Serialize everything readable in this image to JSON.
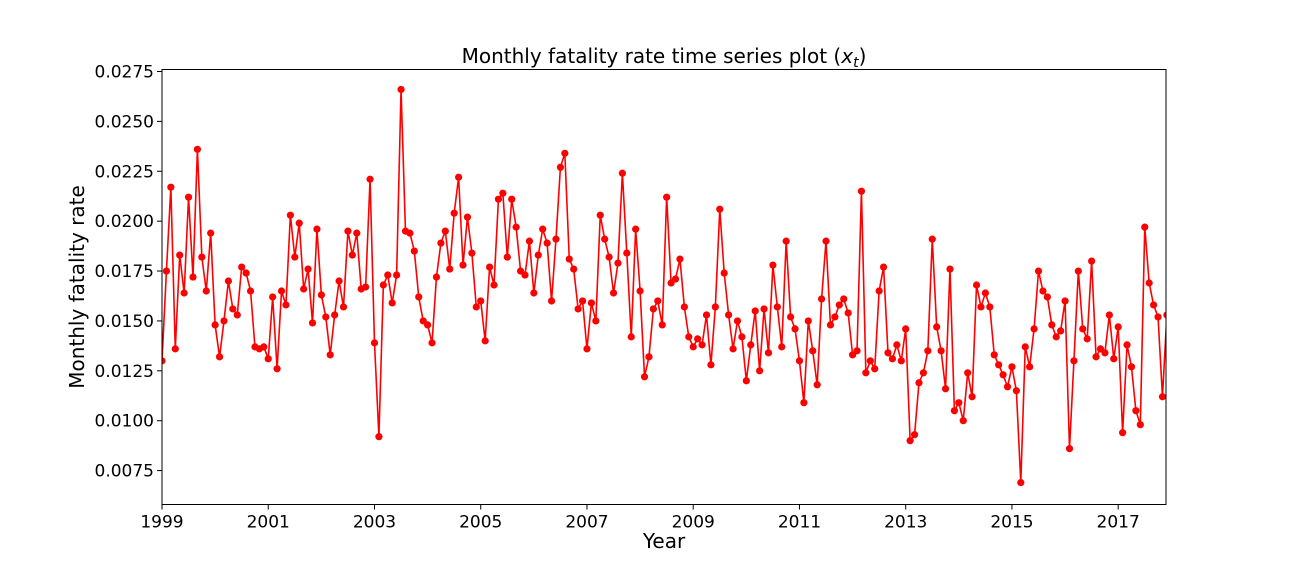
{
  "chart_data": {
    "type": "line",
    "title_prefix": "Monthly fatality rate time series plot (",
    "title_var": "x",
    "title_sub": "t",
    "title_suffix": ")",
    "xlabel": "Year",
    "ylabel": "Monthly fatality rate",
    "x_start_year": 1999,
    "x_interval": "monthly",
    "xlim": [
      1999,
      2017.9
    ],
    "ylim": [
      0.0058,
      0.0276
    ],
    "x_ticks": [
      "1999",
      "2001",
      "2003",
      "2005",
      "2007",
      "2009",
      "2011",
      "2013",
      "2015",
      "2017"
    ],
    "y_ticks": [
      "0.0075",
      "0.0100",
      "0.0125",
      "0.0150",
      "0.0175",
      "0.0200",
      "0.0225",
      "0.0250",
      "0.0275"
    ],
    "grid": false,
    "legend": "none",
    "series": [
      {
        "color": "#ff0000",
        "marker": "circle",
        "values": [
          0.013,
          0.0175,
          0.0217,
          0.0136,
          0.0183,
          0.0164,
          0.0212,
          0.0172,
          0.0236,
          0.0182,
          0.0165,
          0.0194,
          0.0148,
          0.0132,
          0.015,
          0.017,
          0.0156,
          0.0153,
          0.0177,
          0.0174,
          0.0165,
          0.0137,
          0.0136,
          0.0137,
          0.0131,
          0.0162,
          0.0126,
          0.0165,
          0.0158,
          0.0203,
          0.0182,
          0.0199,
          0.0166,
          0.0176,
          0.0149,
          0.0196,
          0.0163,
          0.0152,
          0.0133,
          0.0153,
          0.017,
          0.0157,
          0.0195,
          0.0183,
          0.0194,
          0.0166,
          0.0167,
          0.0221,
          0.0139,
          0.0092,
          0.0168,
          0.0173,
          0.0159,
          0.0173,
          0.0266,
          0.0195,
          0.0194,
          0.0185,
          0.0162,
          0.015,
          0.0148,
          0.0139,
          0.0172,
          0.0189,
          0.0195,
          0.0176,
          0.0204,
          0.0222,
          0.0178,
          0.0202,
          0.0184,
          0.0157,
          0.016,
          0.014,
          0.0177,
          0.0168,
          0.0211,
          0.0214,
          0.0182,
          0.0211,
          0.0197,
          0.0175,
          0.0173,
          0.019,
          0.0164,
          0.0183,
          0.0196,
          0.0189,
          0.016,
          0.0191,
          0.0227,
          0.0234,
          0.0181,
          0.0176,
          0.0156,
          0.016,
          0.0136,
          0.0159,
          0.015,
          0.0203,
          0.0191,
          0.0182,
          0.0164,
          0.0179,
          0.0224,
          0.0184,
          0.0142,
          0.0196,
          0.0165,
          0.0122,
          0.0132,
          0.0156,
          0.016,
          0.0148,
          0.0212,
          0.0169,
          0.0171,
          0.0181,
          0.0157,
          0.0142,
          0.0137,
          0.0141,
          0.0138,
          0.0153,
          0.0128,
          0.0157,
          0.0206,
          0.0174,
          0.0153,
          0.0136,
          0.015,
          0.0142,
          0.012,
          0.0138,
          0.0155,
          0.0125,
          0.0156,
          0.0134,
          0.0178,
          0.0157,
          0.0137,
          0.019,
          0.0152,
          0.0146,
          0.013,
          0.0109,
          0.015,
          0.0135,
          0.0118,
          0.0161,
          0.019,
          0.0148,
          0.0152,
          0.0158,
          0.0161,
          0.0154,
          0.0133,
          0.0135,
          0.0215,
          0.0124,
          0.013,
          0.0126,
          0.0165,
          0.0177,
          0.0134,
          0.0131,
          0.0138,
          0.013,
          0.0146,
          0.009,
          0.0093,
          0.0119,
          0.0124,
          0.0135,
          0.0191,
          0.0147,
          0.0135,
          0.0116,
          0.0176,
          0.0105,
          0.0109,
          0.01,
          0.0124,
          0.0112,
          0.0168,
          0.0157,
          0.0164,
          0.0157,
          0.0133,
          0.0128,
          0.0123,
          0.0117,
          0.0127,
          0.0115,
          0.0069,
          0.0137,
          0.0127,
          0.0146,
          0.0175,
          0.0165,
          0.0162,
          0.0148,
          0.0142,
          0.0145,
          0.016,
          0.0086,
          0.013,
          0.0175,
          0.0146,
          0.0141,
          0.018,
          0.0132,
          0.0136,
          0.0134,
          0.0153,
          0.0131,
          0.0147,
          0.0094,
          0.0138,
          0.0127,
          0.0105,
          0.0098,
          0.0197,
          0.0169,
          0.0158,
          0.0152,
          0.0112,
          0.0153
        ]
      }
    ]
  }
}
